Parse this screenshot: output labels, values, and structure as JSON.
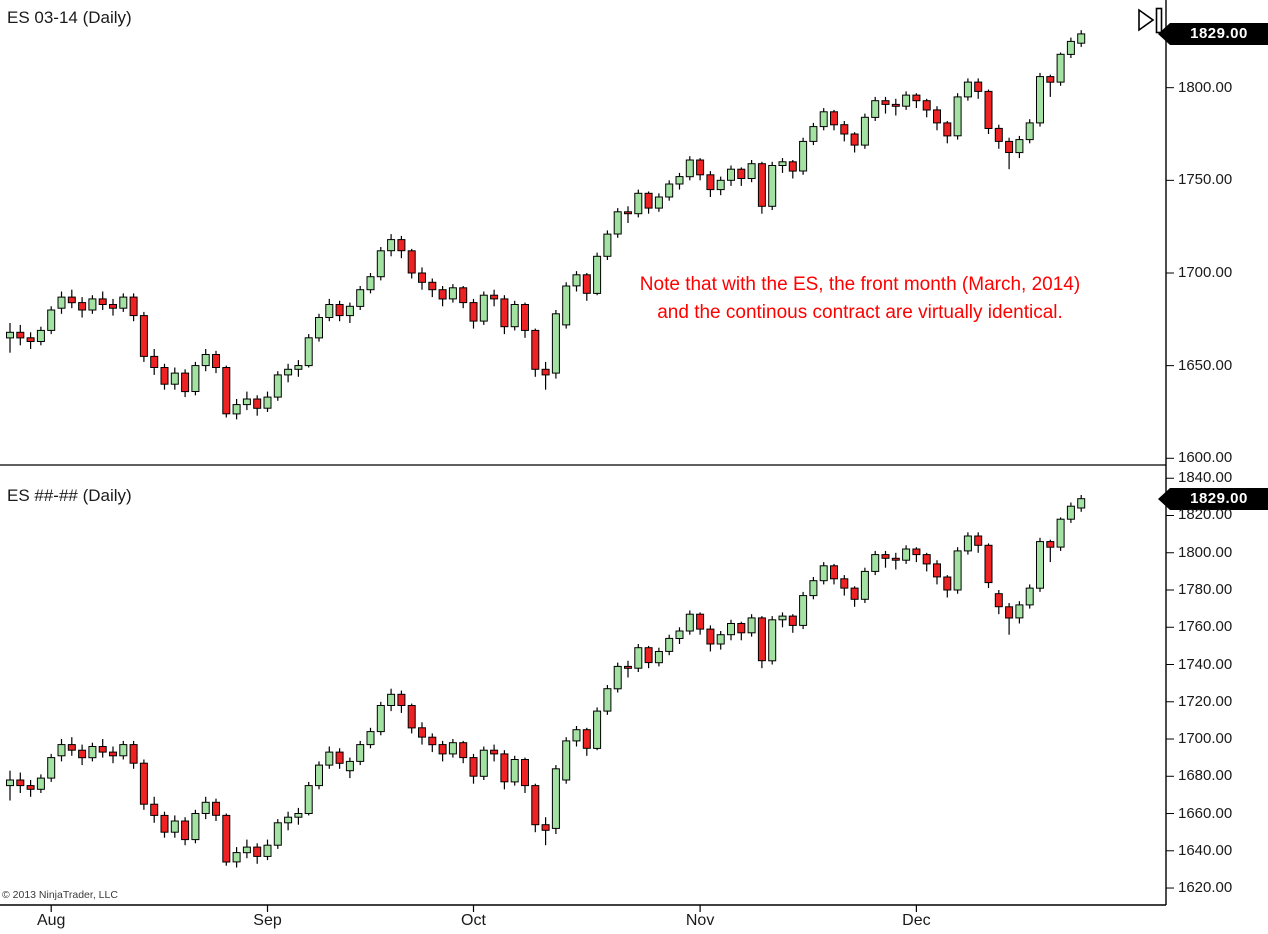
{
  "window": {
    "watermark": "© 2013 NinjaTrader, LLC"
  },
  "annotation": {
    "line1": "Note that with the ES, the front month (March, 2014)",
    "line2": "and the continous contract are virtually identical.",
    "color": "#ff0000"
  },
  "colors": {
    "up": "#a4e2a4",
    "down": "#ee2222",
    "candle_outline": "#000000",
    "wick": "#000000",
    "axis_line": "#000000",
    "tag_bg": "#000000",
    "tag_text": "#ffffff",
    "annotation_text": "#ff0000",
    "title_text": "#1a1a1a",
    "axis_label_text": "#1a1a1a",
    "watermark_text": "#3a3a3a"
  },
  "chart_data": {
    "type": "candlestick",
    "note": "Two stacked daily ES candlestick panels (front-month contract vs continuous contract); both plot the same series, the continuous panel carries a small contract premium before each quarterly roll.",
    "x_axis": {
      "months": [
        "Aug",
        "Sep",
        "Oct",
        "Nov",
        "Dec"
      ],
      "month_start_indices": [
        4,
        25,
        45,
        67,
        88
      ]
    },
    "last_price": 1829,
    "panels": [
      {
        "title": "ES 03-14 (Daily)",
        "price_tag": "1829.00",
        "y_ticks": [
          "1800.00",
          "1750.00",
          "1700.00",
          "1650.00",
          "1600.00"
        ],
        "y_tick_values": [
          1800,
          1750,
          1700,
          1650,
          1600
        ],
        "y_axis_range": [
          1598,
          1843
        ],
        "series_offset": 0
      },
      {
        "title": "ES ##-## (Daily)",
        "price_tag": "1829.00",
        "y_ticks": [
          "1840.00",
          "1820.00",
          "1800.00",
          "1780.00",
          "1760.00",
          "1740.00",
          "1720.00",
          "1700.00",
          "1680.00",
          "1660.00",
          "1640.00",
          "1620.00"
        ],
        "y_tick_values": [
          1840,
          1820,
          1800,
          1780,
          1760,
          1740,
          1720,
          1700,
          1680,
          1660,
          1640,
          1620
        ],
        "y_axis_range": [
          1612.5,
          1845.5
        ],
        "series_offset_piecewise": {
          "break_indices": [
            0,
            33,
            96
          ],
          "offsets": [
            10,
            6,
            0
          ]
        }
      }
    ],
    "candles_format": [
      "open",
      "high",
      "low",
      "close"
    ],
    "candles": [
      [
        1665,
        1673,
        1657,
        1668
      ],
      [
        1668,
        1672,
        1661,
        1665
      ],
      [
        1665,
        1668,
        1659,
        1663
      ],
      [
        1663,
        1671,
        1661,
        1669
      ],
      [
        1669,
        1682,
        1667,
        1680
      ],
      [
        1681,
        1690,
        1678,
        1687
      ],
      [
        1687,
        1691,
        1681,
        1684
      ],
      [
        1684,
        1687,
        1676,
        1680
      ],
      [
        1680,
        1688,
        1678,
        1686
      ],
      [
        1686,
        1690,
        1680,
        1683
      ],
      [
        1683,
        1686,
        1677,
        1681
      ],
      [
        1681,
        1689,
        1679,
        1687
      ],
      [
        1687,
        1689,
        1674,
        1677
      ],
      [
        1677,
        1679,
        1652,
        1655
      ],
      [
        1655,
        1659,
        1645,
        1649
      ],
      [
        1649,
        1651,
        1637,
        1640
      ],
      [
        1640,
        1649,
        1637,
        1646
      ],
      [
        1646,
        1648,
        1633,
        1636
      ],
      [
        1636,
        1652,
        1634,
        1650
      ],
      [
        1650,
        1659,
        1647,
        1656
      ],
      [
        1656,
        1658,
        1646,
        1649
      ],
      [
        1649,
        1650,
        1622,
        1624
      ],
      [
        1624,
        1632,
        1621,
        1629
      ],
      [
        1629,
        1636,
        1626,
        1632
      ],
      [
        1632,
        1634,
        1623,
        1627
      ],
      [
        1627,
        1636,
        1625,
        1633
      ],
      [
        1633,
        1647,
        1631,
        1645
      ],
      [
        1645,
        1651,
        1641,
        1648
      ],
      [
        1648,
        1653,
        1644,
        1650
      ],
      [
        1650,
        1667,
        1649,
        1665
      ],
      [
        1665,
        1678,
        1663,
        1676
      ],
      [
        1676,
        1686,
        1674,
        1683
      ],
      [
        1683,
        1685,
        1674,
        1677
      ],
      [
        1677,
        1684,
        1673,
        1682
      ],
      [
        1682,
        1693,
        1680,
        1691
      ],
      [
        1691,
        1700,
        1689,
        1698
      ],
      [
        1698,
        1714,
        1696,
        1712
      ],
      [
        1712,
        1721,
        1709,
        1718
      ],
      [
        1718,
        1720,
        1708,
        1712
      ],
      [
        1712,
        1713,
        1697,
        1700
      ],
      [
        1700,
        1703,
        1691,
        1695
      ],
      [
        1695,
        1697,
        1687,
        1691
      ],
      [
        1691,
        1693,
        1682,
        1686
      ],
      [
        1686,
        1694,
        1684,
        1692
      ],
      [
        1692,
        1693,
        1681,
        1684
      ],
      [
        1684,
        1686,
        1670,
        1674
      ],
      [
        1674,
        1690,
        1672,
        1688
      ],
      [
        1688,
        1691,
        1682,
        1686
      ],
      [
        1686,
        1688,
        1667,
        1671
      ],
      [
        1671,
        1685,
        1669,
        1683
      ],
      [
        1683,
        1684,
        1665,
        1669
      ],
      [
        1669,
        1670,
        1644,
        1648
      ],
      [
        1648,
        1652,
        1637,
        1645
      ],
      [
        1646,
        1680,
        1643,
        1678
      ],
      [
        1672,
        1695,
        1670,
        1693
      ],
      [
        1693,
        1701,
        1690,
        1699
      ],
      [
        1699,
        1700,
        1685,
        1689
      ],
      [
        1689,
        1711,
        1688,
        1709
      ],
      [
        1709,
        1723,
        1707,
        1721
      ],
      [
        1721,
        1735,
        1719,
        1733
      ],
      [
        1733,
        1736,
        1727,
        1732
      ],
      [
        1732,
        1745,
        1730,
        1743
      ],
      [
        1743,
        1744,
        1732,
        1735
      ],
      [
        1735,
        1743,
        1733,
        1741
      ],
      [
        1741,
        1750,
        1739,
        1748
      ],
      [
        1748,
        1754,
        1745,
        1752
      ],
      [
        1752,
        1763,
        1750,
        1761
      ],
      [
        1761,
        1762,
        1750,
        1753
      ],
      [
        1753,
        1755,
        1741,
        1745
      ],
      [
        1745,
        1752,
        1742,
        1750
      ],
      [
        1750,
        1758,
        1747,
        1756
      ],
      [
        1756,
        1757,
        1747,
        1751
      ],
      [
        1751,
        1761,
        1749,
        1759
      ],
      [
        1759,
        1760,
        1732,
        1736
      ],
      [
        1736,
        1760,
        1734,
        1758
      ],
      [
        1758,
        1762,
        1754,
        1760
      ],
      [
        1760,
        1761,
        1751,
        1755
      ],
      [
        1755,
        1773,
        1753,
        1771
      ],
      [
        1771,
        1781,
        1769,
        1779
      ],
      [
        1779,
        1789,
        1777,
        1787
      ],
      [
        1787,
        1788,
        1777,
        1780
      ],
      [
        1780,
        1782,
        1771,
        1775
      ],
      [
        1775,
        1776,
        1765,
        1769
      ],
      [
        1769,
        1786,
        1767,
        1784
      ],
      [
        1784,
        1795,
        1782,
        1793
      ],
      [
        1793,
        1795,
        1786,
        1791
      ],
      [
        1791,
        1794,
        1785,
        1790
      ],
      [
        1790,
        1798,
        1788,
        1796
      ],
      [
        1796,
        1797,
        1789,
        1793
      ],
      [
        1793,
        1794,
        1784,
        1788
      ],
      [
        1788,
        1790,
        1777,
        1781
      ],
      [
        1781,
        1782,
        1770,
        1774
      ],
      [
        1774,
        1797,
        1772,
        1795
      ],
      [
        1795,
        1805,
        1793,
        1803
      ],
      [
        1803,
        1805,
        1794,
        1798
      ],
      [
        1798,
        1799,
        1775,
        1778
      ],
      [
        1778,
        1780,
        1767,
        1771
      ],
      [
        1771,
        1773,
        1756,
        1765
      ],
      [
        1765,
        1774,
        1762,
        1772
      ],
      [
        1772,
        1783,
        1770,
        1781
      ],
      [
        1781,
        1808,
        1779,
        1806
      ],
      [
        1806,
        1807,
        1795,
        1803
      ],
      [
        1803,
        1819,
        1801,
        1818
      ],
      [
        1818,
        1827,
        1816,
        1825
      ],
      [
        1824,
        1831,
        1822,
        1829
      ]
    ]
  }
}
